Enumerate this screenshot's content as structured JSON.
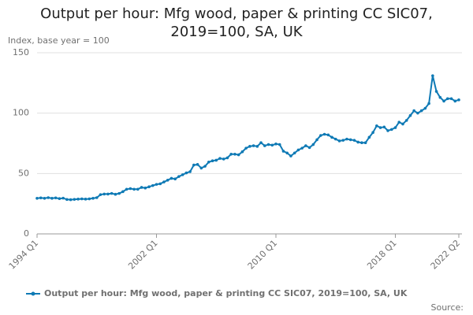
{
  "chart_data": {
    "type": "line",
    "title": "Output per hour: Mfg wood, paper & printing CC SIC07, 2019=100, SA, UK",
    "y_label": "Index, base year = 100",
    "source": "Source:",
    "categories": [
      "1994 Q1",
      null,
      null,
      null,
      null,
      null,
      null,
      null,
      null,
      null,
      null,
      null,
      null,
      null,
      null,
      null,
      null,
      null,
      null,
      null,
      null,
      null,
      null,
      null,
      null,
      null,
      null,
      null,
      null,
      null,
      null,
      null,
      "2002 Q1",
      null,
      null,
      null,
      null,
      null,
      null,
      null,
      null,
      null,
      null,
      null,
      null,
      null,
      null,
      null,
      null,
      null,
      null,
      null,
      null,
      null,
      null,
      null,
      null,
      null,
      null,
      null,
      null,
      null,
      null,
      null,
      "2010 Q1",
      null,
      null,
      null,
      null,
      null,
      null,
      null,
      null,
      null,
      null,
      null,
      null,
      null,
      null,
      null,
      null,
      null,
      null,
      null,
      null,
      null,
      null,
      null,
      null,
      null,
      null,
      null,
      null,
      null,
      null,
      null,
      "2018 Q1",
      null,
      null,
      null,
      null,
      null,
      null,
      null,
      null,
      null,
      null,
      null,
      null,
      null,
      null,
      null,
      null,
      "2022 Q2"
    ],
    "series": [
      {
        "name": "Output per hour: Mfg wood, paper & printing CC SIC07, 2019=100, SA, UK",
        "color": "#0f7ab5",
        "values": [
          29.5,
          29.8,
          29.5,
          30,
          29.5,
          29.8,
          29.2,
          29.6,
          28.5,
          28.3,
          28.6,
          28.8,
          29,
          28.8,
          29,
          29.5,
          30,
          32.5,
          33,
          33,
          33.5,
          32.8,
          33.5,
          35,
          37,
          37.5,
          37,
          37,
          38.5,
          38,
          39,
          40,
          41,
          41.5,
          43,
          44.5,
          46,
          45.5,
          47.5,
          49,
          50.5,
          51.5,
          57,
          57.5,
          54.5,
          56,
          59.5,
          60.5,
          61,
          62.5,
          62,
          63,
          66,
          66,
          65.5,
          68,
          71,
          72.5,
          73,
          72.5,
          75.5,
          73,
          74,
          73.5,
          74.5,
          74,
          68.5,
          67,
          64.5,
          67,
          69.5,
          71,
          73,
          71.5,
          74,
          78,
          81.5,
          82.5,
          82,
          80,
          78.5,
          77,
          77.5,
          78.5,
          78,
          77.5,
          76,
          75.5,
          75.5,
          80,
          84,
          89.5,
          88,
          88.5,
          85.5,
          86.5,
          88,
          92.5,
          91,
          94,
          98,
          102,
          100,
          102,
          104,
          108,
          131,
          118,
          113,
          110,
          112,
          112,
          110,
          111
        ]
      }
    ],
    "ylim": [
      0,
      150
    ],
    "yticks": [
      0,
      50,
      100,
      150
    ],
    "grid": true,
    "legend": "bottom"
  }
}
